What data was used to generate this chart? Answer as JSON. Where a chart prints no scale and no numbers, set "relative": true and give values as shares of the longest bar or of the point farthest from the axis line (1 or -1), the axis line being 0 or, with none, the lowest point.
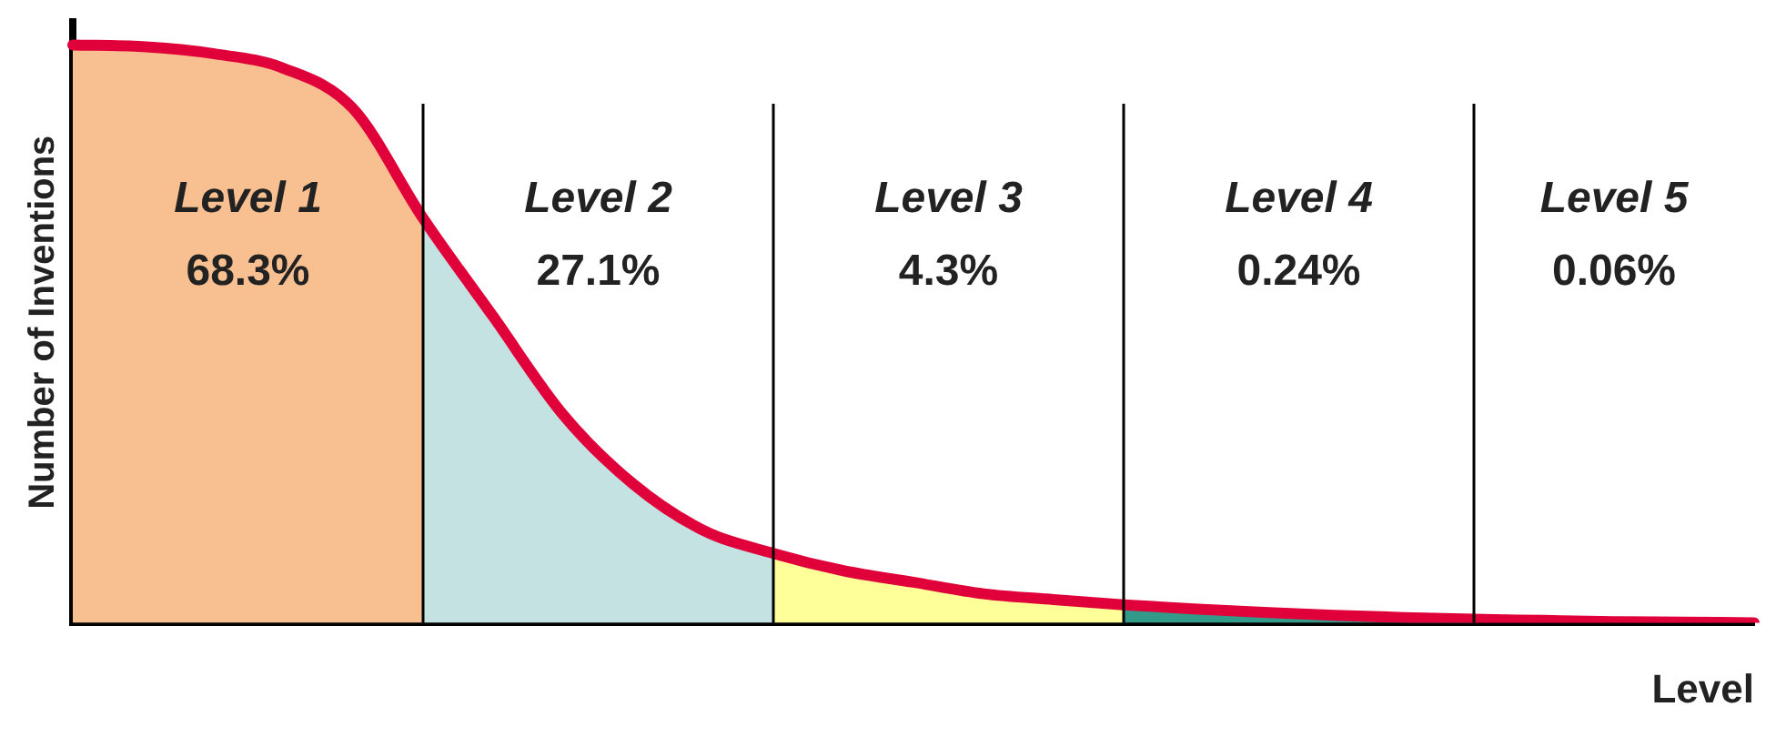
{
  "chart_data": {
    "type": "area",
    "relative": true,
    "grid": "x",
    "xlabel": "Level",
    "ylabel": "Number of Inventions",
    "categories": [
      null,
      null,
      null,
      null,
      null,
      null,
      null,
      null,
      null,
      null,
      null,
      null,
      null,
      null,
      null,
      null,
      null,
      null,
      null,
      null,
      null,
      null,
      null,
      null,
      null
    ],
    "series": [
      {
        "color": "#f8c090",
        "values": [
          1.0,
          0.997,
          0.985,
          0.96,
          0.89,
          0.7,
          null,
          null,
          null,
          null,
          null,
          null,
          null,
          null,
          null,
          null,
          null,
          null,
          null,
          null,
          null,
          null,
          null,
          null,
          null
        ]
      },
      {
        "color": "#c4e2e2",
        "values": [
          null,
          null,
          null,
          null,
          null,
          0.7,
          0.53,
          0.36,
          0.24,
          0.16,
          0.12,
          null,
          null,
          null,
          null,
          null,
          null,
          null,
          null,
          null,
          null,
          null,
          null,
          null,
          null
        ]
      },
      {
        "color": "#ffff99",
        "values": [
          null,
          null,
          null,
          null,
          null,
          null,
          null,
          null,
          null,
          null,
          0.12,
          0.09,
          0.07,
          0.05,
          0.04,
          0.031,
          null,
          null,
          null,
          null,
          null,
          null,
          null,
          null,
          null
        ]
      },
      {
        "color": "#339988",
        "values": [
          null,
          null,
          null,
          null,
          null,
          null,
          null,
          null,
          null,
          null,
          null,
          null,
          null,
          null,
          null,
          0.031,
          0.024,
          0.018,
          0.013,
          0.009,
          0.006,
          null,
          null,
          null,
          null
        ]
      },
      {
        "type": "line",
        "color": "#e0003a",
        "values": [
          1.0,
          0.997,
          0.985,
          0.96,
          0.89,
          0.7,
          0.53,
          0.36,
          0.24,
          0.16,
          0.12,
          0.09,
          0.07,
          0.05,
          0.04,
          0.031,
          0.024,
          0.018,
          0.013,
          0.009,
          0.006,
          0.004,
          0.002,
          0.001,
          0.0
        ]
      }
    ],
    "annotations": [
      "Level 1",
      "68.3%",
      "Level 2",
      "27.1%",
      "Level 3",
      "4.3%",
      "Level 4",
      "0.24%",
      "Level 5",
      "0.06%"
    ]
  }
}
